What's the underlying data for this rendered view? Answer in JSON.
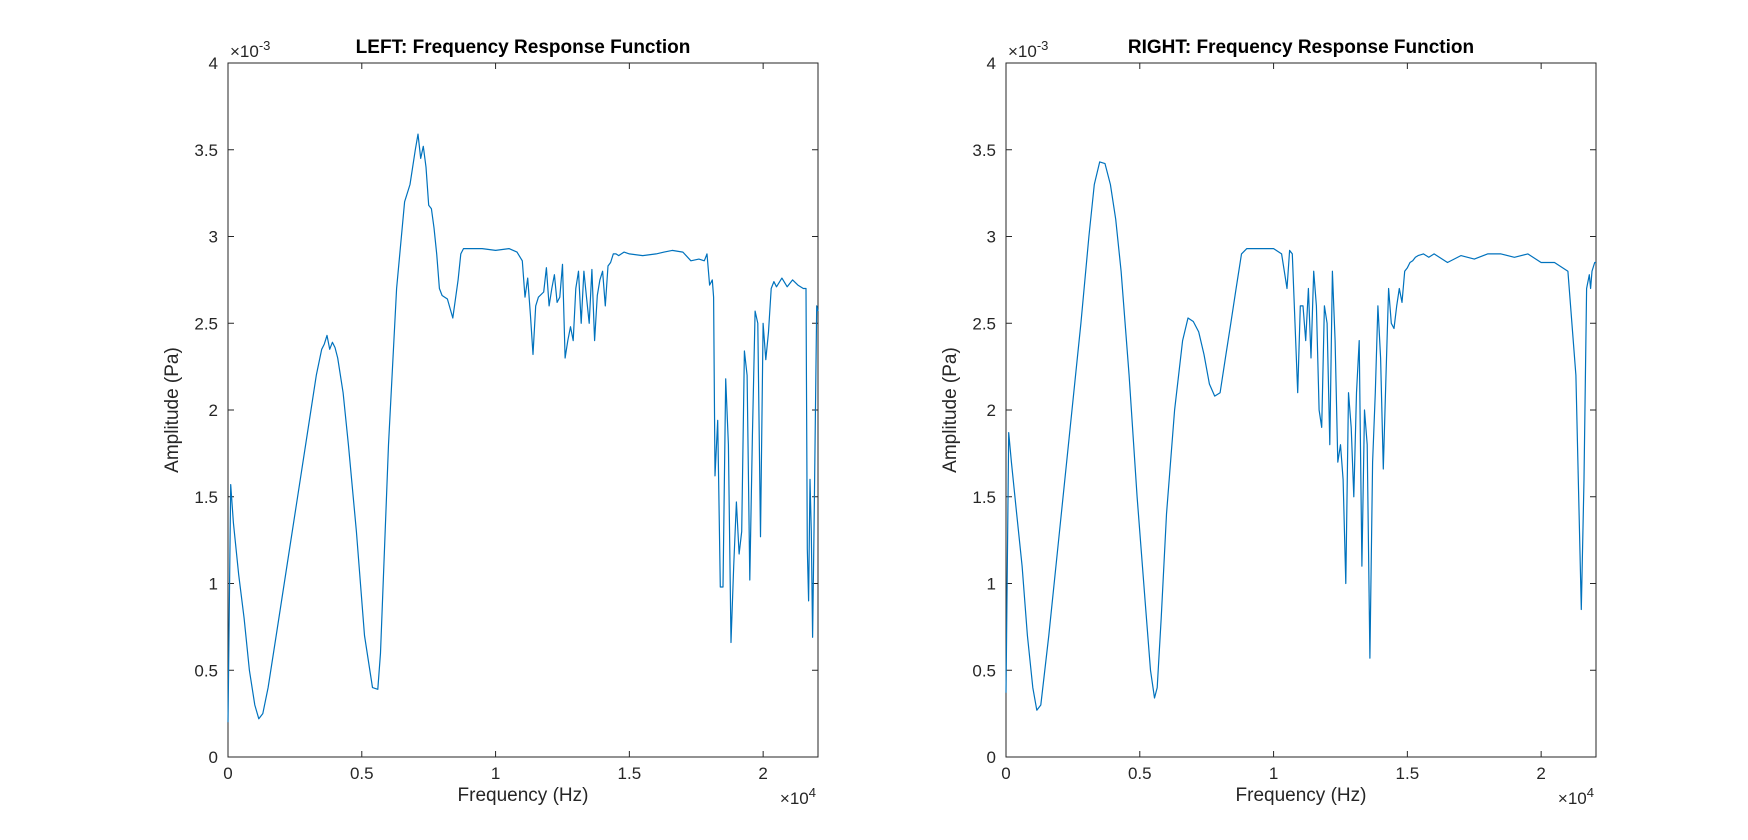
{
  "chart_data": [
    {
      "type": "line",
      "title": "LEFT: Frequency Response Function",
      "xlabel": "Frequency (Hz)",
      "ylabel": "Amplitude (Pa)",
      "xlim": [
        0,
        22050
      ],
      "ylim": [
        0,
        0.004
      ],
      "x_ticks": [
        0,
        5000,
        10000,
        15000,
        20000
      ],
      "x_tick_labels": [
        "0",
        "0.5",
        "1",
        "1.5",
        "2"
      ],
      "x_exponent_label": "×10",
      "x_exponent_power": "4",
      "y_ticks": [
        0,
        0.0005,
        0.001,
        0.0015,
        0.002,
        0.0025,
        0.003,
        0.0035,
        0.004
      ],
      "y_tick_labels": [
        "0",
        "0.5",
        "1",
        "1.5",
        "2",
        "2.5",
        "3",
        "3.5",
        "4"
      ],
      "y_exponent_label": "×10",
      "y_exponent_power": "-3",
      "grid": false,
      "color": "#0072BD",
      "series": [
        {
          "x": [
            0,
            100,
            200,
            400,
            600,
            800,
            1000,
            1150,
            1300,
            1500,
            1800,
            2200,
            2600,
            3000,
            3300,
            3500,
            3600,
            3700,
            3800,
            3900,
            4000,
            4100,
            4300,
            4500,
            4800,
            5100,
            5400,
            5600,
            5700,
            5850,
            6000,
            6300,
            6600,
            6800,
            7000,
            7100,
            7200,
            7300,
            7400,
            7500,
            7600,
            7700,
            7800,
            7900,
            8000,
            8200,
            8400,
            8600,
            8700,
            8800,
            9000,
            9500,
            10000,
            10500,
            10800,
            11000,
            11100,
            11200,
            11300,
            11400,
            11500,
            11600,
            11800,
            11900,
            12000,
            12100,
            12200,
            12300,
            12400,
            12500,
            12600,
            12700,
            12800,
            12900,
            13000,
            13100,
            13200,
            13300,
            13400,
            13500,
            13600,
            13700,
            13800,
            13900,
            14000,
            14100,
            14200,
            14300,
            14400,
            14500,
            14600,
            14700,
            14800,
            15000,
            15500,
            16000,
            16300,
            16600,
            17000,
            17300,
            17600,
            17800,
            17900,
            18000,
            18100,
            18150,
            18200,
            18300,
            18400,
            18500,
            18600,
            18700,
            18800,
            18900,
            19000,
            19100,
            19200,
            19300,
            19400,
            19500,
            19600,
            19700,
            19800,
            19900,
            20000,
            20100,
            20200,
            20300,
            20400,
            20500,
            20700,
            20900,
            21100,
            21300,
            21500,
            21600,
            21650,
            21700,
            21750,
            21800,
            21850,
            21900,
            22000,
            22050
          ],
          "y": [
            0.0002,
            0.00157,
            0.00135,
            0.00105,
            0.0008,
            0.0005,
            0.0003,
            0.00022,
            0.00025,
            0.0004,
            0.0007,
            0.0011,
            0.0015,
            0.0019,
            0.0022,
            0.00235,
            0.00238,
            0.00243,
            0.00235,
            0.00239,
            0.00236,
            0.0023,
            0.0021,
            0.0018,
            0.0013,
            0.0007,
            0.0004,
            0.00039,
            0.0006,
            0.0012,
            0.0018,
            0.0027,
            0.0032,
            0.0033,
            0.0035,
            0.00359,
            0.00345,
            0.00352,
            0.0034,
            0.00318,
            0.00316,
            0.00305,
            0.0029,
            0.0027,
            0.00266,
            0.00264,
            0.00253,
            0.00275,
            0.0029,
            0.00293,
            0.00293,
            0.00293,
            0.00292,
            0.00293,
            0.00291,
            0.00286,
            0.00265,
            0.00276,
            0.00255,
            0.00232,
            0.0026,
            0.00265,
            0.00268,
            0.00282,
            0.0026,
            0.0027,
            0.00278,
            0.00262,
            0.00265,
            0.00284,
            0.0023,
            0.0024,
            0.00248,
            0.0024,
            0.0027,
            0.0028,
            0.0025,
            0.0028,
            0.00265,
            0.0025,
            0.00281,
            0.0024,
            0.00266,
            0.00275,
            0.0028,
            0.0026,
            0.00283,
            0.00285,
            0.0029,
            0.0029,
            0.00289,
            0.0029,
            0.00291,
            0.0029,
            0.00289,
            0.0029,
            0.00291,
            0.00292,
            0.00291,
            0.00286,
            0.00287,
            0.00286,
            0.0029,
            0.00272,
            0.00275,
            0.00265,
            0.00162,
            0.00194,
            0.00098,
            0.00098,
            0.00218,
            0.0018,
            0.00066,
            0.0011,
            0.00147,
            0.00117,
            0.0013,
            0.00234,
            0.0022,
            0.00102,
            0.00185,
            0.00257,
            0.0025,
            0.00127,
            0.0025,
            0.00229,
            0.00245,
            0.0027,
            0.00274,
            0.00271,
            0.00276,
            0.00271,
            0.00275,
            0.00272,
            0.0027,
            0.0027,
            0.0012,
            0.0009,
            0.0016,
            0.0013,
            0.00069,
            0.0013,
            0.0026,
            0.00257
          ]
        }
      ]
    },
    {
      "type": "line",
      "title": "RIGHT: Frequency Response Function",
      "xlabel": "Frequency (Hz)",
      "ylabel": "Amplitude (Pa)",
      "xlim": [
        0,
        22050
      ],
      "ylim": [
        0,
        0.004
      ],
      "x_ticks": [
        0,
        5000,
        10000,
        15000,
        20000
      ],
      "x_tick_labels": [
        "0",
        "0.5",
        "1",
        "1.5",
        "2"
      ],
      "x_exponent_label": "×10",
      "x_exponent_power": "4",
      "y_ticks": [
        0,
        0.0005,
        0.001,
        0.0015,
        0.002,
        0.0025,
        0.003,
        0.0035,
        0.004
      ],
      "y_tick_labels": [
        "0",
        "0.5",
        "1",
        "1.5",
        "2",
        "2.5",
        "3",
        "3.5",
        "4"
      ],
      "y_exponent_label": "×10",
      "y_exponent_power": "-3",
      "grid": false,
      "color": "#0072BD",
      "series": [
        {
          "x": [
            0,
            100,
            200,
            400,
            600,
            800,
            1000,
            1150,
            1300,
            1600,
            2000,
            2400,
            2800,
            3100,
            3300,
            3500,
            3700,
            3900,
            4100,
            4300,
            4600,
            4900,
            5200,
            5400,
            5550,
            5650,
            5800,
            6000,
            6300,
            6600,
            6800,
            7000,
            7200,
            7400,
            7600,
            7800,
            8000,
            8200,
            8400,
            8600,
            8800,
            9000,
            9200,
            9600,
            10000,
            10300,
            10500,
            10600,
            10700,
            10800,
            10900,
            11000,
            11100,
            11200,
            11300,
            11400,
            11500,
            11600,
            11700,
            11800,
            11900,
            12000,
            12100,
            12200,
            12300,
            12400,
            12500,
            12600,
            12700,
            12800,
            12900,
            13000,
            13100,
            13200,
            13300,
            13400,
            13500,
            13600,
            13700,
            13800,
            13900,
            14000,
            14100,
            14200,
            14300,
            14400,
            14500,
            14600,
            14700,
            14800,
            14900,
            15000,
            15100,
            15200,
            15300,
            15400,
            15600,
            15800,
            16000,
            16500,
            17000,
            17500,
            18000,
            18500,
            19000,
            19500,
            20000,
            20500,
            21000,
            21300,
            21500,
            21600,
            21700,
            21800,
            21850,
            21900,
            22000,
            22050
          ],
          "y": [
            0.00037,
            0.00187,
            0.0017,
            0.0014,
            0.0011,
            0.0007,
            0.0004,
            0.00027,
            0.0003,
            0.0007,
            0.0013,
            0.0019,
            0.0025,
            0.003,
            0.0033,
            0.00343,
            0.00342,
            0.0033,
            0.0031,
            0.0028,
            0.0022,
            0.0015,
            0.0009,
            0.0005,
            0.00034,
            0.0004,
            0.0008,
            0.0014,
            0.002,
            0.0024,
            0.00253,
            0.00251,
            0.00245,
            0.00232,
            0.00215,
            0.00208,
            0.0021,
            0.0023,
            0.0025,
            0.0027,
            0.0029,
            0.00293,
            0.00293,
            0.00293,
            0.00293,
            0.0029,
            0.0027,
            0.00292,
            0.0029,
            0.0025,
            0.0021,
            0.0026,
            0.0026,
            0.0024,
            0.0027,
            0.0023,
            0.0028,
            0.0026,
            0.002,
            0.0019,
            0.0026,
            0.0025,
            0.0018,
            0.0028,
            0.0024,
            0.0017,
            0.0018,
            0.0016,
            0.001,
            0.0021,
            0.0019,
            0.0015,
            0.0021,
            0.0024,
            0.0011,
            0.002,
            0.0018,
            0.00057,
            0.0017,
            0.0021,
            0.0026,
            0.0023,
            0.00166,
            0.0022,
            0.0027,
            0.0025,
            0.00247,
            0.0026,
            0.0027,
            0.00262,
            0.0028,
            0.00282,
            0.00285,
            0.00286,
            0.00288,
            0.00289,
            0.0029,
            0.00288,
            0.0029,
            0.00285,
            0.00289,
            0.00287,
            0.0029,
            0.0029,
            0.00288,
            0.0029,
            0.00285,
            0.00285,
            0.0028,
            0.0022,
            0.00085,
            0.0016,
            0.0027,
            0.00278,
            0.0027,
            0.0028,
            0.00285,
            0.00285
          ]
        }
      ]
    }
  ]
}
